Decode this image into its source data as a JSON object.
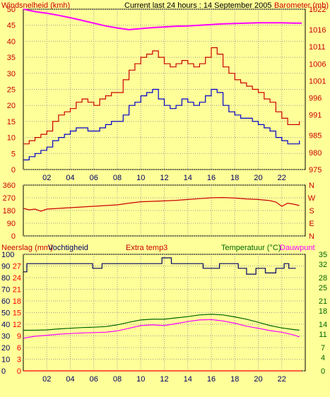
{
  "header": {
    "left_label": "Windsnelheid (kmh)",
    "center_label": "Current last 24 hours : 14 September 2005",
    "right_label": "Barometer (mb)"
  },
  "colors": {
    "background": "#ffff99",
    "gust": "#cc0000",
    "average": "#0000cc",
    "barometer": "#ff00ff",
    "direction": "#cc0000",
    "humidity": "#000066",
    "temperature": "#006600",
    "dewpoint": "#ff00ff",
    "rain": "#ff0000",
    "left_axis_text": "#cc0000",
    "right_axis_text": "#cc0000",
    "green_text": "#006600"
  },
  "x_ticks": [
    "02",
    "04",
    "06",
    "08",
    "10",
    "12",
    "14",
    "16",
    "18",
    "20",
    "22"
  ],
  "chart_data": [
    {
      "type": "line",
      "name": "wind-barometer",
      "grid": true,
      "xlim": [
        0,
        24
      ],
      "left_axis": {
        "ticks": [
          0,
          5,
          10,
          15,
          20,
          25,
          30,
          35,
          40,
          45,
          50
        ],
        "ylim": [
          0,
          50
        ]
      },
      "right_axis": {
        "ticks": [
          975,
          980,
          985,
          991,
          996,
          1001,
          1006,
          1011,
          1016,
          1022
        ],
        "ylim": [
          975,
          1022
        ]
      },
      "series": [
        {
          "name": "Windstoten",
          "x": [
            0.0,
            0.5,
            1.0,
            1.5,
            2.0,
            2.5,
            3.0,
            3.5,
            4.0,
            4.5,
            5.0,
            5.5,
            6.0,
            6.5,
            7.0,
            7.5,
            8.0,
            8.5,
            9.0,
            9.5,
            10.0,
            10.5,
            11.0,
            11.5,
            12.0,
            12.5,
            13.0,
            13.5,
            14.0,
            14.5,
            15.0,
            15.5,
            16.0,
            16.5,
            17.0,
            17.5,
            18.0,
            18.5,
            19.0,
            19.5,
            20.0,
            20.5,
            21.0,
            21.5,
            22.0,
            22.5,
            23.0,
            23.5
          ],
          "values": [
            8,
            9,
            10,
            11,
            12,
            15,
            17,
            18,
            19,
            21,
            22,
            21,
            20,
            22,
            23,
            24,
            24,
            28,
            31,
            33,
            35,
            36,
            37,
            35,
            33,
            32,
            33,
            34,
            33,
            32,
            33,
            35,
            38,
            36,
            32,
            30,
            28,
            27,
            26,
            25,
            24,
            22,
            21,
            18,
            16,
            14,
            14,
            15
          ]
        },
        {
          "name": "Gemiddeld",
          "x": [
            0.0,
            0.5,
            1.0,
            1.5,
            2.0,
            2.5,
            3.0,
            3.5,
            4.0,
            4.5,
            5.0,
            5.5,
            6.0,
            6.5,
            7.0,
            7.5,
            8.0,
            8.5,
            9.0,
            9.5,
            10.0,
            10.5,
            11.0,
            11.5,
            12.0,
            12.5,
            13.0,
            13.5,
            14.0,
            14.5,
            15.0,
            15.5,
            16.0,
            16.5,
            17.0,
            17.5,
            18.0,
            18.5,
            19.0,
            19.5,
            20.0,
            20.5,
            21.0,
            21.5,
            22.0,
            22.5,
            23.0,
            23.5
          ],
          "values": [
            3,
            4,
            5,
            6,
            7,
            9,
            10,
            11,
            12,
            13,
            13,
            12,
            12,
            13,
            14,
            15,
            15,
            17,
            20,
            21,
            23,
            24,
            25,
            22,
            20,
            19,
            20,
            22,
            21,
            20,
            21,
            23,
            25,
            24,
            20,
            18,
            17,
            16,
            16,
            15,
            14,
            13,
            12,
            10,
            9,
            8,
            8,
            9
          ]
        },
        {
          "name": "Barometer",
          "axis": "right",
          "x": [
            0.0,
            1.0,
            2.0,
            3.0,
            4.0,
            5.0,
            6.0,
            7.0,
            8.0,
            9.0,
            10.0,
            11.0,
            12.0,
            13.0,
            14.0,
            15.0,
            16.0,
            17.0,
            18.0,
            19.0,
            20.0,
            21.0,
            22.0,
            23.0,
            23.7
          ],
          "values": [
            1022,
            1021.3,
            1020.8,
            1020.2,
            1019.5,
            1018.7,
            1017.9,
            1017.1,
            1016.5,
            1016.0,
            1016.3,
            1016.6,
            1016.8,
            1017.0,
            1017.1,
            1017.3,
            1017.5,
            1017.7,
            1017.8,
            1017.9,
            1018.0,
            1018.0,
            1018.0,
            1017.9,
            1017.9
          ]
        }
      ]
    },
    {
      "type": "line",
      "name": "wind-direction",
      "grid": true,
      "xlim": [
        0,
        24
      ],
      "left_axis": {
        "ticks": [
          0,
          90,
          180,
          270,
          360
        ],
        "ylim": [
          0,
          360
        ]
      },
      "right_axis": {
        "labels": [
          "N",
          "W",
          "S",
          "E",
          "N"
        ]
      },
      "series": [
        {
          "name": "Windrichting",
          "x": [
            0.0,
            0.5,
            1.0,
            1.5,
            2.0,
            3.0,
            4.0,
            5.0,
            6.0,
            7.0,
            8.0,
            9.0,
            10.0,
            11.0,
            12.0,
            13.0,
            14.0,
            15.0,
            16.0,
            17.0,
            18.0,
            19.0,
            20.0,
            21.0,
            21.5,
            22.0,
            22.5,
            23.0,
            23.5
          ],
          "values": [
            195,
            185,
            190,
            175,
            190,
            195,
            200,
            205,
            210,
            215,
            220,
            232,
            242,
            245,
            248,
            252,
            258,
            264,
            270,
            272,
            268,
            262,
            258,
            250,
            240,
            210,
            232,
            225,
            215
          ]
        }
      ]
    },
    {
      "type": "line",
      "name": "humidity-temperature",
      "grid": true,
      "xlim": [
        0,
        24
      ],
      "labels": {
        "rain": "Neerslag (mm)",
        "humidity": "Vochtigheid",
        "extra": "Extra temp3",
        "temperature": "Temperatuur (°C)",
        "dewpoint": "Dauwpunt"
      },
      "humidity_axis": {
        "ticks": [
          0,
          10,
          20,
          30,
          40,
          50,
          60,
          70,
          80,
          90,
          100
        ],
        "ylim": [
          0,
          100
        ]
      },
      "rain_axis": {
        "ticks": [
          0,
          3,
          6,
          9,
          12,
          15,
          18,
          21,
          24,
          27
        ],
        "ylim": [
          0,
          30
        ]
      },
      "temp_axis": {
        "ticks": [
          0,
          4,
          7,
          11,
          14,
          18,
          21,
          25,
          28,
          32,
          35
        ],
        "ylim": [
          0,
          35
        ]
      },
      "series": [
        {
          "name": "Vochtigheid",
          "x": [
            0.0,
            0.3,
            0.3,
            5.9,
            5.9,
            6.7,
            6.7,
            11.8,
            11.8,
            12.6,
            12.6,
            15.3,
            15.3,
            16.7,
            16.7,
            18.3,
            18.3,
            19.0,
            19.0,
            19.8,
            19.8,
            20.6,
            20.6,
            21.5,
            21.5,
            22.2,
            22.2,
            22.6,
            22.6,
            23.2
          ],
          "values": [
            85,
            85,
            92,
            92,
            88,
            88,
            92,
            92,
            97,
            97,
            92,
            92,
            88,
            88,
            92,
            92,
            88,
            88,
            83,
            83,
            88,
            88,
            84,
            84,
            88,
            88,
            92,
            92,
            88,
            88
          ]
        },
        {
          "name": "Temperatuur",
          "x": [
            0.0,
            1.0,
            2.0,
            3.0,
            4.0,
            5.0,
            6.0,
            7.0,
            8.0,
            9.0,
            10.0,
            11.0,
            12.0,
            13.0,
            14.0,
            15.0,
            16.0,
            17.0,
            18.0,
            19.0,
            20.0,
            21.0,
            22.0,
            23.0,
            23.5
          ],
          "values": [
            12.2,
            12.2,
            12.3,
            12.6,
            12.8,
            13.0,
            13.1,
            13.3,
            13.8,
            14.6,
            15.3,
            15.5,
            15.5,
            15.9,
            16.3,
            16.8,
            17.0,
            16.8,
            16.2,
            15.5,
            14.6,
            13.6,
            12.9,
            12.4,
            12.2
          ]
        },
        {
          "name": "Dauwpunt",
          "x": [
            0.0,
            1.0,
            2.0,
            3.0,
            4.0,
            5.0,
            6.0,
            7.0,
            8.0,
            9.0,
            10.0,
            11.0,
            12.0,
            13.0,
            14.0,
            15.0,
            16.0,
            17.0,
            18.0,
            19.0,
            20.0,
            21.0,
            22.0,
            23.0,
            23.5
          ],
          "values": [
            9.8,
            10.4,
            10.7,
            11.0,
            11.2,
            11.4,
            11.5,
            11.6,
            12.0,
            12.8,
            13.6,
            13.8,
            13.6,
            14.2,
            14.8,
            15.3,
            15.4,
            15.0,
            14.3,
            13.4,
            12.8,
            12.1,
            11.6,
            10.8,
            10.2
          ]
        },
        {
          "name": "Neerslag",
          "x": [
            0.0,
            23.7
          ],
          "values": [
            0,
            0
          ]
        }
      ]
    }
  ]
}
